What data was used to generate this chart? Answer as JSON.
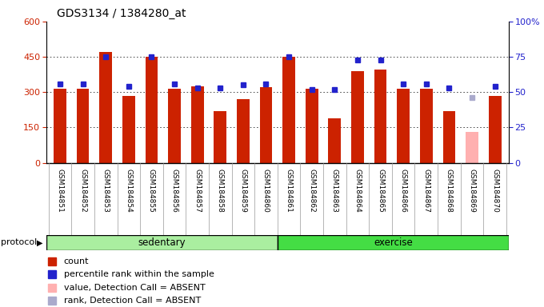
{
  "title": "GDS3134 / 1384280_at",
  "samples": [
    "GSM184851",
    "GSM184852",
    "GSM184853",
    "GSM184854",
    "GSM184855",
    "GSM184856",
    "GSM184857",
    "GSM184858",
    "GSM184859",
    "GSM184860",
    "GSM184861",
    "GSM184862",
    "GSM184863",
    "GSM184864",
    "GSM184865",
    "GSM184866",
    "GSM184867",
    "GSM184868",
    "GSM184869",
    "GSM184870"
  ],
  "counts": [
    315,
    315,
    470,
    285,
    450,
    315,
    325,
    220,
    270,
    320,
    450,
    315,
    190,
    390,
    395,
    315,
    315,
    220,
    130,
    285
  ],
  "ranks": [
    56,
    56,
    75,
    54,
    75,
    56,
    53,
    53,
    55,
    56,
    75,
    52,
    52,
    73,
    73,
    56,
    56,
    53,
    46,
    54
  ],
  "absent_flag": [
    false,
    false,
    false,
    false,
    false,
    false,
    false,
    false,
    false,
    false,
    false,
    false,
    false,
    false,
    false,
    false,
    false,
    false,
    true,
    false
  ],
  "absent_rank_flag": [
    false,
    false,
    false,
    false,
    false,
    false,
    false,
    false,
    false,
    false,
    false,
    false,
    false,
    false,
    false,
    false,
    false,
    false,
    true,
    false
  ],
  "sedentary_count": 10,
  "bar_color": "#cc2200",
  "absent_bar_color": "#ffb0b0",
  "rank_color": "#2222cc",
  "absent_rank_color": "#aaaacc",
  "ylim_left": [
    0,
    600
  ],
  "ylim_right": [
    0,
    100
  ],
  "yticks_left": [
    0,
    150,
    300,
    450,
    600
  ],
  "yticks_right": [
    0,
    25,
    50,
    75,
    100
  ],
  "plot_bg": "#ffffff",
  "xlabel_bg": "#d8d8d8",
  "sedentary_color": "#aaeea0",
  "exercise_color": "#44dd44",
  "protocol_label": "protocol",
  "sedentary_label": "sedentary",
  "exercise_label": "exercise",
  "legend_items": [
    {
      "label": "count",
      "color": "#cc2200"
    },
    {
      "label": "percentile rank within the sample",
      "color": "#2222cc"
    },
    {
      "label": "value, Detection Call = ABSENT",
      "color": "#ffb0b0"
    },
    {
      "label": "rank, Detection Call = ABSENT",
      "color": "#aaaacc"
    }
  ]
}
